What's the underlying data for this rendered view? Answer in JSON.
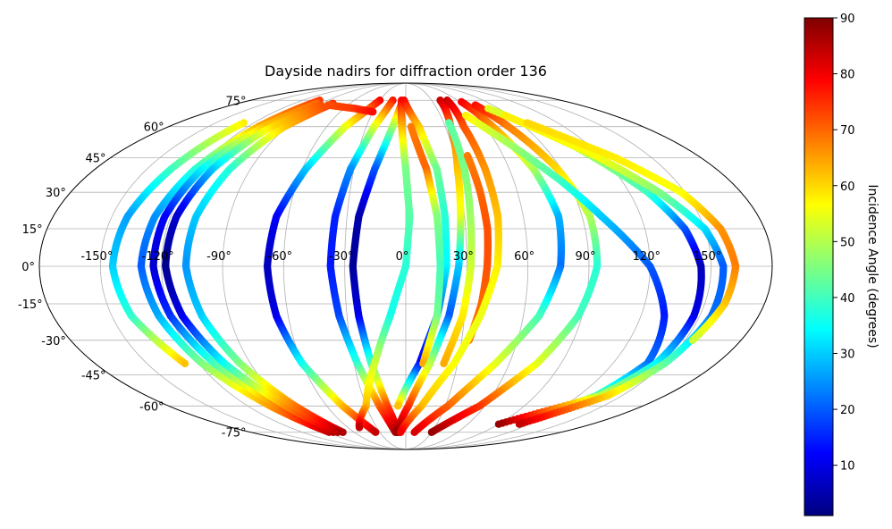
{
  "chart_data": {
    "type": "scatter",
    "title": "Dayside nadirs for diffraction order 136",
    "projection": "mollweide",
    "grid": true,
    "xlim": [
      -180,
      180
    ],
    "ylim": [
      -90,
      90
    ],
    "lon_ticks": [
      {
        "value": -150,
        "label": "-150°"
      },
      {
        "value": -120,
        "label": "-120°"
      },
      {
        "value": -90,
        "label": "-90°"
      },
      {
        "value": -60,
        "label": "-60°"
      },
      {
        "value": -30,
        "label": "-30°"
      },
      {
        "value": 0,
        "label": "0°"
      },
      {
        "value": 30,
        "label": "30°"
      },
      {
        "value": 60,
        "label": "60°"
      },
      {
        "value": 90,
        "label": "90°"
      },
      {
        "value": 120,
        "label": "120°"
      },
      {
        "value": 150,
        "label": "150°"
      }
    ],
    "lat_ticks": [
      {
        "value": 75,
        "label": "75°"
      },
      {
        "value": 60,
        "label": "60°"
      },
      {
        "value": 45,
        "label": "45°"
      },
      {
        "value": 30,
        "label": "30°"
      },
      {
        "value": 15,
        "label": "15°"
      },
      {
        "value": 0,
        "label": "0°"
      },
      {
        "value": -15,
        "label": "-15°"
      },
      {
        "value": -30,
        "label": "-30°"
      },
      {
        "value": -45,
        "label": "-45°"
      },
      {
        "value": -60,
        "label": "-60°"
      },
      {
        "value": -75,
        "label": "-75°"
      }
    ],
    "colorbar": {
      "label": "Incidence Angle (degrees)",
      "colormap": "jet",
      "range": [
        1,
        90
      ],
      "ticks": [
        10,
        20,
        30,
        40,
        50,
        60,
        70,
        80,
        90
      ],
      "tick_labels": [
        "10",
        "20",
        "30",
        "40",
        "50",
        "60",
        "70",
        "80",
        "90"
      ]
    },
    "tracks": [
      {
        "lat": [
          75,
          60,
          40,
          20,
          0,
          -20,
          -40,
          -60,
          -75
        ],
        "lon": [
          -100,
          -112,
          -122,
          -128,
          -130,
          -126,
          -118,
          -103,
          -89
        ],
        "angle": [
          74,
          64,
          38,
          25,
          20,
          27,
          45,
          65,
          84
        ]
      },
      {
        "lat": [
          73,
          60,
          40,
          20,
          0,
          -20,
          -40,
          -60,
          -75
        ],
        "lon": [
          -95,
          -108,
          -118,
          -123,
          -124,
          -120,
          -111,
          -96,
          -84
        ],
        "angle": [
          70,
          62,
          34,
          12,
          8,
          16,
          40,
          68,
          86
        ]
      },
      {
        "lat": [
          72,
          60,
          40,
          20,
          0,
          -20,
          -40,
          -60,
          -75
        ],
        "lon": [
          -88,
          -102,
          -112,
          -117,
          -118,
          -114,
          -105,
          -91,
          -79
        ],
        "angle": [
          72,
          60,
          30,
          8,
          2,
          10,
          35,
          66,
          85
        ]
      },
      {
        "lat": [
          73,
          60,
          40,
          20,
          0,
          -20,
          -40,
          -60,
          -75
        ],
        "lon": [
          -78,
          -92,
          -102,
          -107,
          -108,
          -104,
          -96,
          -84,
          -73
        ],
        "angle": [
          75,
          62,
          38,
          30,
          25,
          30,
          45,
          68,
          86
        ]
      },
      {
        "lat": [
          75,
          60,
          40,
          20,
          0,
          -20,
          -40,
          -60,
          -75
        ],
        "lon": [
          -30,
          -46,
          -58,
          -66,
          -68,
          -66,
          -60,
          -48,
          -35
        ],
        "angle": [
          80,
          56,
          30,
          12,
          6,
          10,
          35,
          62,
          84
        ]
      },
      {
        "lat": [
          75,
          60,
          40,
          20,
          0,
          -20,
          -40,
          -60,
          -75
        ],
        "lon": [
          -15,
          -24,
          -32,
          -36,
          -37,
          -34,
          -28,
          -20,
          -12
        ],
        "angle": [
          78,
          55,
          25,
          15,
          14,
          18,
          38,
          70,
          86
        ]
      },
      {
        "lat": [
          74,
          60,
          40,
          20,
          0,
          -20,
          -40,
          -60,
          -75
        ],
        "lon": [
          -4,
          -10,
          -18,
          -24,
          -26,
          -24,
          -20,
          -14,
          -8
        ],
        "angle": [
          76,
          50,
          20,
          5,
          3,
          10,
          40,
          72,
          87
        ]
      },
      {
        "lat": [
          75,
          60,
          40,
          20,
          0,
          -20,
          -40,
          -60,
          -72
        ],
        "lon": [
          -5,
          -3,
          0,
          2,
          0,
          -8,
          -18,
          -30,
          -48
        ],
        "angle": [
          80,
          64,
          45,
          42,
          38,
          36,
          52,
          62,
          84
        ]
      },
      {
        "lat": [
          75,
          60,
          40,
          20,
          0,
          -20,
          -40,
          -60
        ],
        "lon": [
          -2,
          10,
          18,
          20,
          20,
          16,
          8,
          -6
        ],
        "angle": [
          80,
          62,
          44,
          38,
          34,
          20,
          12,
          62
        ]
      },
      {
        "lat": [
          60,
          40,
          20,
          0,
          -20,
          -40
        ],
        "lon": [
          4,
          12,
          16,
          17,
          16,
          10
        ],
        "angle": [
          68,
          70,
          46,
          40,
          44,
          64
        ]
      },
      {
        "lat": [
          75,
          60,
          40,
          20,
          0,
          -20,
          -40,
          -60,
          -75
        ],
        "lon": [
          40,
          34,
          30,
          28,
          26,
          22,
          14,
          2,
          -10
        ],
        "angle": [
          84,
          70,
          62,
          55,
          30,
          20,
          50,
          74,
          88
        ]
      },
      {
        "lat": [
          62,
          40,
          20,
          0,
          -20,
          -40
        ],
        "lon": [
          34,
          34,
          33,
          32,
          29,
          22
        ],
        "angle": [
          42,
          45,
          48,
          52,
          58,
          64
        ]
      },
      {
        "lat": [
          46,
          30,
          15,
          0,
          -15,
          -30
        ],
        "lon": [
          38,
          40,
          41,
          40,
          38,
          34
        ],
        "angle": [
          68,
          70,
          72,
          72,
          70,
          68
        ]
      },
      {
        "lat": [
          75,
          60,
          40,
          20,
          0,
          -20,
          -40,
          -60,
          -75
        ],
        "lon": [
          48,
          44,
          46,
          47,
          45,
          38,
          28,
          12,
          -6
        ],
        "angle": [
          84,
          72,
          66,
          62,
          58,
          55,
          56,
          62,
          80
        ]
      },
      {
        "lat": [
          74,
          60,
          40,
          20,
          0,
          -20,
          -40,
          -60,
          -75
        ],
        "lon": [
          62,
          66,
          74,
          78,
          76,
          68,
          52,
          32,
          10
        ],
        "angle": [
          80,
          66,
          50,
          28,
          22,
          40,
          54,
          70,
          82
        ]
      },
      {
        "lat": [
          72,
          60,
          40,
          20,
          0,
          -20,
          -40,
          -60,
          -75
        ],
        "lon": [
          72,
          78,
          88,
          94,
          94,
          88,
          76,
          56,
          30
        ],
        "angle": [
          78,
          68,
          60,
          50,
          38,
          40,
          54,
          74,
          88
        ]
      },
      {
        "lat": [
          66,
          50,
          35,
          20,
          0,
          -20,
          -40,
          -55,
          -68
        ],
        "lon": [
          52,
          70,
          86,
          100,
          120,
          132,
          140,
          132,
          110
        ],
        "angle": [
          58,
          48,
          40,
          30,
          20,
          14,
          22,
          42,
          88
        ]
      },
      {
        "lat": [
          70,
          50,
          30,
          15,
          0,
          -20,
          -40,
          -55,
          -70
        ],
        "lon": [
          80,
          110,
          130,
          140,
          145,
          147,
          145,
          135,
          90
        ],
        "angle": [
          54,
          50,
          40,
          20,
          6,
          10,
          34,
          52,
          88
        ]
      },
      {
        "lat": [
          66,
          45,
          30,
          15,
          0,
          -20,
          -40,
          -55,
          -70
        ],
        "lon": [
          86,
          118,
          136,
          150,
          156,
          156,
          150,
          140,
          110
        ],
        "angle": [
          58,
          56,
          46,
          32,
          20,
          22,
          42,
          60,
          84
        ]
      },
      {
        "lat": [
          62,
          45,
          30,
          15,
          0,
          -15,
          -30
        ],
        "lon": [
          96,
          128,
          148,
          158,
          162,
          160,
          154
        ],
        "angle": [
          60,
          58,
          56,
          66,
          68,
          62,
          52
        ]
      },
      {
        "lat": [
          62,
          40,
          20,
          0,
          -20,
          -40
        ],
        "lon": [
          -128,
          -136,
          -142,
          -144,
          -140,
          -128
        ],
        "angle": [
          58,
          40,
          26,
          30,
          38,
          62
        ]
      },
      {
        "lat": [
          72,
          70,
          68
        ],
        "lon": [
          -80,
          -50,
          -30
        ],
        "angle": [
          72,
          74,
          78
        ]
      }
    ]
  }
}
